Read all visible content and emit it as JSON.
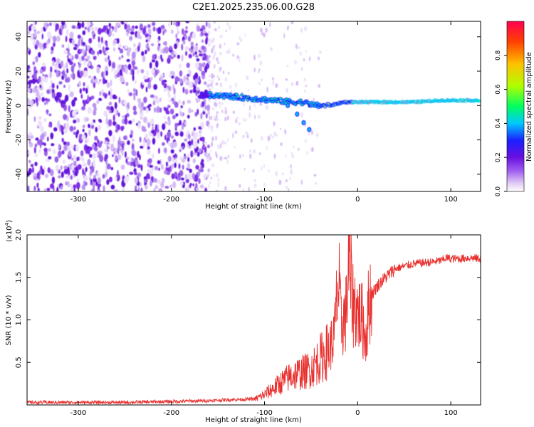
{
  "title": "C2E1.2025.235.06.00.G28",
  "chart_data": [
    {
      "type": "heatmap",
      "title": "",
      "xlabel": "Height of straight line (km)",
      "ylabel": "Frequency (Hz)",
      "xlim": [
        -355,
        132
      ],
      "ylim": [
        -50,
        49
      ],
      "xticks": [
        -300,
        -200,
        -100,
        0,
        100
      ],
      "yticks": [
        -40,
        -20,
        0,
        20,
        40
      ],
      "colorbar": {
        "label": "Normalized spectral amplitude",
        "range": [
          0,
          1
        ],
        "ticks": [
          "0.0",
          "0.2",
          "0.4",
          "0.6",
          "0.8"
        ],
        "colors": [
          "#ffffff",
          "#e0c8f4",
          "#a060f0",
          "#6a10e0",
          "#1a20ff",
          "#00c8ff",
          "#00ff60",
          "#b0ff00",
          "#ffc000",
          "#ff4000",
          "#ff0050"
        ]
      },
      "features": {
        "noise_region_x": [
          -355,
          -160
        ],
        "sparse_region_x": [
          -160,
          -40
        ],
        "signal_track": [
          {
            "x": -170,
            "y": 6
          },
          {
            "x": -150,
            "y": 6
          },
          {
            "x": -130,
            "y": 5
          },
          {
            "x": -110,
            "y": 4
          },
          {
            "x": -90,
            "y": 3
          },
          {
            "x": -70,
            "y": 2
          },
          {
            "x": -60,
            "y": 2
          },
          {
            "x": -45,
            "y": 0
          },
          {
            "x": -30,
            "y": 0
          },
          {
            "x": -15,
            "y": 2
          },
          {
            "x": 0,
            "y": 2
          },
          {
            "x": 30,
            "y": 2
          },
          {
            "x": 60,
            "y": 2
          },
          {
            "x": 90,
            "y": 3
          },
          {
            "x": 130,
            "y": 3
          }
        ],
        "secondary_track": [
          {
            "x": -75,
            "y": 0
          },
          {
            "x": -65,
            "y": -5
          },
          {
            "x": -58,
            "y": -10
          },
          {
            "x": -52,
            "y": -14
          }
        ]
      }
    },
    {
      "type": "line",
      "title": "",
      "xlabel": "Height of straight line (km)",
      "ylabel": "SNR (10 * v/v)",
      "exponent_label": "(x10",
      "exponent_power": "4",
      "exponent_close": ")",
      "xlim": [
        -355,
        132
      ],
      "ylim": [
        0,
        2.0
      ],
      "xticks": [
        -300,
        -200,
        -100,
        0,
        100
      ],
      "yticks": [
        "0.5",
        "1.0",
        "1.5",
        "2.0"
      ],
      "series": [
        {
          "color": "#e8312f",
          "x": [
            -355,
            -300,
            -250,
            -200,
            -160,
            -140,
            -110,
            -100,
            -90,
            -80,
            -70,
            -60,
            -50,
            -40,
            -35,
            -30,
            -25,
            -22,
            -20,
            -18,
            -15,
            -12,
            -10,
            -5,
            0,
            5,
            8,
            10,
            12,
            15,
            20,
            25,
            30,
            35,
            40,
            50,
            60,
            70,
            80,
            90,
            95,
            100,
            110,
            120,
            132
          ],
          "values": [
            0.03,
            0.03,
            0.03,
            0.04,
            0.05,
            0.06,
            0.07,
            0.12,
            0.2,
            0.28,
            0.35,
            0.38,
            0.42,
            0.55,
            0.6,
            0.68,
            0.8,
            1.3,
            1.4,
            0.95,
            1.0,
            1.1,
            1.7,
            1.2,
            1.1,
            1.0,
            0.8,
            0.9,
            1.2,
            1.3,
            1.38,
            1.45,
            1.5,
            1.55,
            1.6,
            1.63,
            1.66,
            1.67,
            1.68,
            1.7,
            1.73,
            1.72,
            1.72,
            1.73,
            1.72
          ]
        }
      ]
    }
  ]
}
